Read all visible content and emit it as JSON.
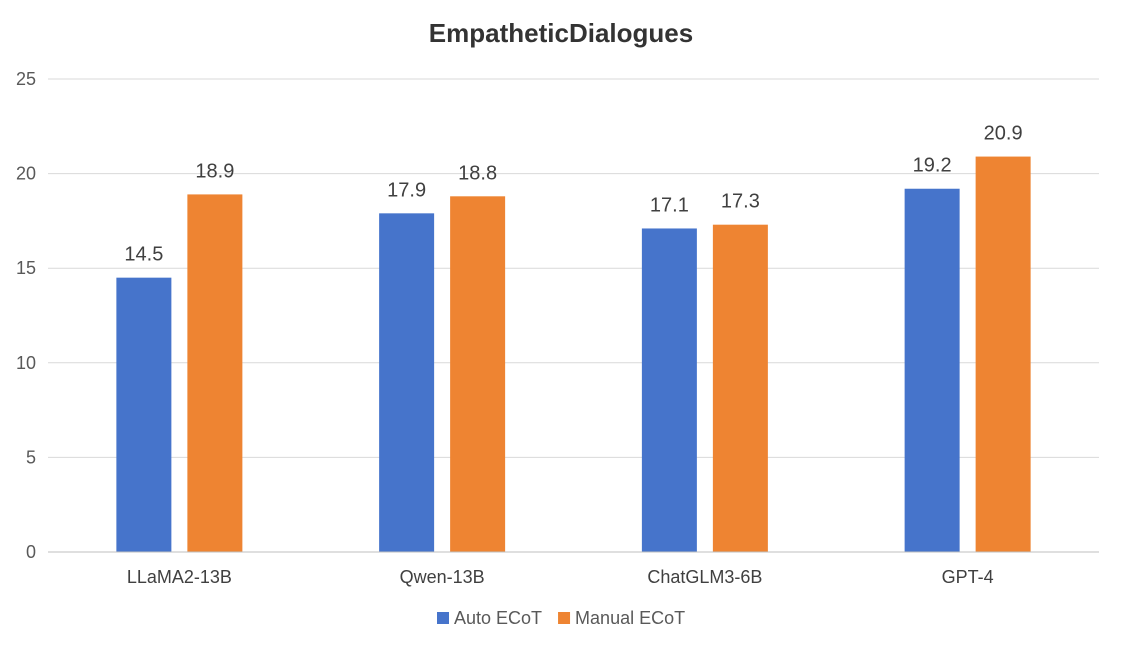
{
  "chart_data": {
    "type": "bar",
    "title": "EmpatheticDialogues",
    "xlabel": "",
    "ylabel": "",
    "ylim": [
      0,
      25
    ],
    "yticks": [
      0,
      5,
      10,
      15,
      20,
      25
    ],
    "grid": true,
    "legend_position": "bottom",
    "categories": [
      "LLaMA2-13B",
      "Qwen-13B",
      "ChatGLM3-6B",
      "GPT-4"
    ],
    "series": [
      {
        "name": "Auto ECoT",
        "color": "#4674CB",
        "values": [
          14.5,
          17.9,
          17.1,
          19.2
        ]
      },
      {
        "name": "Manual ECoT",
        "color": "#EE8432",
        "values": [
          18.9,
          18.8,
          17.3,
          20.9
        ]
      }
    ]
  }
}
